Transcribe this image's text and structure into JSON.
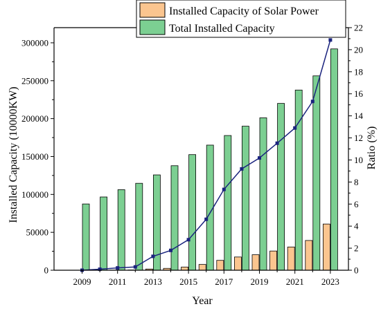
{
  "chart_data": {
    "type": "bar",
    "title": "",
    "xlabel": "Year",
    "ylabel": "Installed Capacity (10000KW)",
    "y2label": "Ratio (%)",
    "categories": [
      "2009",
      "2010",
      "2011",
      "2012",
      "2013",
      "2014",
      "2015",
      "2016",
      "2017",
      "2018",
      "2019",
      "2020",
      "2021",
      "2022",
      "2023"
    ],
    "xtick_labels": [
      "2009",
      "2011",
      "2013",
      "2015",
      "2017",
      "2019",
      "2021",
      "2023"
    ],
    "ylim": [
      0,
      320000
    ],
    "yticks": [
      "0",
      "50000",
      "100000",
      "150000",
      "200000",
      "250000",
      "300000"
    ],
    "y2lim": [
      0,
      22
    ],
    "y2ticks": [
      "0",
      "2",
      "4",
      "6",
      "8",
      "10",
      "12",
      "14",
      "16",
      "18",
      "20",
      "22"
    ],
    "legend_position": "top-right",
    "series": [
      {
        "name": "Installed Capacity of Solar Power",
        "kind": "bar",
        "axis": "left",
        "color": "#fbc58f",
        "values": [
          3,
          86,
          222,
          341,
          1589,
          2486,
          4218,
          7631,
          13025,
          17463,
          20468,
          25343,
          30656,
          39261,
          60949
        ]
      },
      {
        "name": "Total Installed Capacity",
        "kind": "bar",
        "axis": "left",
        "color": "#7ccf92",
        "values": [
          87410,
          96641,
          106253,
          114676,
          125768,
          137887,
          152527,
          165051,
          177708,
          190012,
          201066,
          220058,
          237692,
          256405,
          291965
        ]
      },
      {
        "name": "",
        "kind": "line",
        "axis": "right",
        "color": "#1a237e",
        "values": [
          0.0,
          0.09,
          0.21,
          0.3,
          1.26,
          1.8,
          2.77,
          4.62,
          7.33,
          9.19,
          10.18,
          11.52,
          12.9,
          15.31,
          20.88
        ]
      }
    ]
  }
}
